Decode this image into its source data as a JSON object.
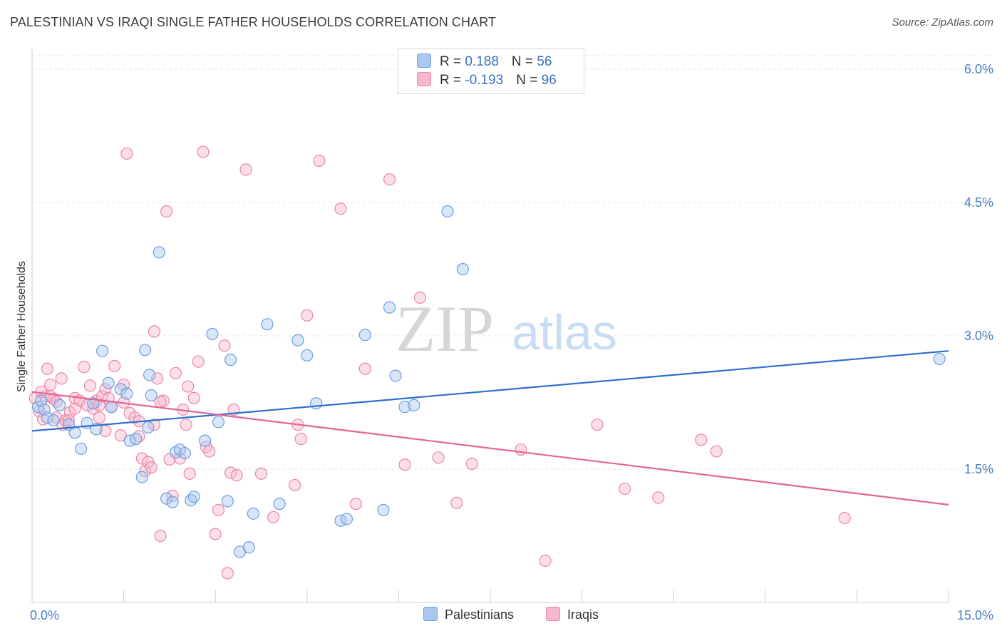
{
  "title": "PALESTINIAN VS IRAQI SINGLE FATHER HOUSEHOLDS CORRELATION CHART",
  "source": "Source: ZipAtlas.com",
  "watermark": {
    "zip": "ZIP",
    "atlas": "atlas"
  },
  "legend": {
    "rows": [
      {
        "r_label": "R = ",
        "r_value": "0.188",
        "n_label": "N = ",
        "n_value": "56",
        "color": "#a8c8f0",
        "border": "#6f9ee0"
      },
      {
        "r_label": "R = ",
        "r_value": "-0.193",
        "n_label": "N = ",
        "n_value": "96",
        "color": "#f7b8cc",
        "border": "#ec86a6"
      }
    ]
  },
  "bottom_legend": {
    "items": [
      {
        "label": "Palestinians",
        "color": "#a8c8f0",
        "border": "#6f9ee0"
      },
      {
        "label": "Iraqis",
        "color": "#f7b8cc",
        "border": "#ec86a6"
      }
    ]
  },
  "chart_data": {
    "type": "scatter",
    "title": "PALESTINIAN VS IRAQI SINGLE FATHER HOUSEHOLDS CORRELATION CHART",
    "xlabel": "",
    "ylabel": "Single Father Households",
    "xlim": [
      0,
      15
    ],
    "ylim": [
      0,
      6.3
    ],
    "x_tick_labels": [
      "0.0%",
      "15.0%"
    ],
    "y_ticks": [
      1.5,
      3.0,
      4.5,
      6.0
    ],
    "y_tick_labels": [
      "1.5%",
      "3.0%",
      "4.5%",
      "6.0%"
    ],
    "grid": true,
    "legend_position": "top-center",
    "series": [
      {
        "name": "Palestinians",
        "color": "#6f9ee0",
        "fill": "#a8c8f0",
        "trend": {
          "x": [
            0,
            15
          ],
          "y": [
            1.93,
            2.83
          ],
          "color": "#2f6fd0"
        },
        "points": [
          [
            0.1,
            2.2
          ],
          [
            0.15,
            2.27
          ],
          [
            0.2,
            2.17
          ],
          [
            0.25,
            2.08
          ],
          [
            0.35,
            2.05
          ],
          [
            0.45,
            2.22
          ],
          [
            0.6,
            2.0
          ],
          [
            0.7,
            1.91
          ],
          [
            0.8,
            1.73
          ],
          [
            0.9,
            2.02
          ],
          [
            1.0,
            2.24
          ],
          [
            1.05,
            1.95
          ],
          [
            1.15,
            2.83
          ],
          [
            1.25,
            2.47
          ],
          [
            1.3,
            2.2
          ],
          [
            1.45,
            2.4
          ],
          [
            1.55,
            2.35
          ],
          [
            1.6,
            1.82
          ],
          [
            1.7,
            1.84
          ],
          [
            1.8,
            1.41
          ],
          [
            1.85,
            2.84
          ],
          [
            1.9,
            1.97
          ],
          [
            1.92,
            2.56
          ],
          [
            1.95,
            2.33
          ],
          [
            2.08,
            3.94
          ],
          [
            2.2,
            1.17
          ],
          [
            2.3,
            1.13
          ],
          [
            2.35,
            1.69
          ],
          [
            2.42,
            1.72
          ],
          [
            2.5,
            1.68
          ],
          [
            2.6,
            1.15
          ],
          [
            2.65,
            1.19
          ],
          [
            2.83,
            1.82
          ],
          [
            2.95,
            3.02
          ],
          [
            3.05,
            2.03
          ],
          [
            3.2,
            1.14
          ],
          [
            3.25,
            2.73
          ],
          [
            3.4,
            0.57
          ],
          [
            3.55,
            0.62
          ],
          [
            3.62,
            1.0
          ],
          [
            3.85,
            3.13
          ],
          [
            4.05,
            1.11
          ],
          [
            4.35,
            2.95
          ],
          [
            4.5,
            2.78
          ],
          [
            4.65,
            2.24
          ],
          [
            5.05,
            0.92
          ],
          [
            5.15,
            0.94
          ],
          [
            5.45,
            3.01
          ],
          [
            5.75,
            1.04
          ],
          [
            5.85,
            3.32
          ],
          [
            5.95,
            2.55
          ],
          [
            6.1,
            2.2
          ],
          [
            6.25,
            2.22
          ],
          [
            6.8,
            4.4
          ],
          [
            7.05,
            3.75
          ],
          [
            14.85,
            2.74
          ]
        ]
      },
      {
        "name": "Iraqis",
        "color": "#ec86a6",
        "fill": "#f7b8cc",
        "trend": {
          "x": [
            0,
            15
          ],
          "y": [
            2.37,
            1.1
          ],
          "color": "#e36594"
        },
        "points": [
          [
            0.05,
            2.3
          ],
          [
            0.12,
            2.15
          ],
          [
            0.18,
            2.06
          ],
          [
            0.22,
            2.32
          ],
          [
            0.25,
            2.63
          ],
          [
            0.3,
            2.45
          ],
          [
            0.35,
            2.29
          ],
          [
            0.4,
            2.08
          ],
          [
            0.48,
            2.52
          ],
          [
            0.5,
            2.0
          ],
          [
            0.55,
            2.05
          ],
          [
            0.62,
            2.14
          ],
          [
            0.7,
            2.3
          ],
          [
            0.78,
            2.27
          ],
          [
            0.85,
            2.65
          ],
          [
            0.95,
            2.44
          ],
          [
            1.0,
            2.18
          ],
          [
            1.05,
            2.27
          ],
          [
            1.1,
            2.22
          ],
          [
            1.15,
            2.32
          ],
          [
            1.2,
            2.4
          ],
          [
            1.25,
            2.3
          ],
          [
            1.3,
            2.2
          ],
          [
            1.35,
            2.66
          ],
          [
            1.45,
            1.88
          ],
          [
            1.5,
            2.45
          ],
          [
            1.55,
            5.05
          ],
          [
            1.6,
            2.13
          ],
          [
            1.68,
            2.08
          ],
          [
            1.75,
            1.87
          ],
          [
            1.8,
            1.62
          ],
          [
            1.85,
            1.48
          ],
          [
            1.9,
            1.58
          ],
          [
            1.95,
            1.52
          ],
          [
            2.0,
            3.05
          ],
          [
            2.05,
            2.52
          ],
          [
            2.1,
            0.75
          ],
          [
            2.15,
            2.27
          ],
          [
            2.2,
            4.4
          ],
          [
            2.25,
            1.61
          ],
          [
            2.3,
            1.2
          ],
          [
            2.35,
            2.58
          ],
          [
            2.42,
            1.62
          ],
          [
            2.47,
            2.17
          ],
          [
            2.52,
            2.0
          ],
          [
            2.58,
            1.45
          ],
          [
            2.65,
            2.3
          ],
          [
            2.72,
            2.71
          ],
          [
            2.8,
            5.07
          ],
          [
            2.85,
            1.75
          ],
          [
            2.9,
            1.7
          ],
          [
            3.0,
            0.77
          ],
          [
            3.05,
            1.04
          ],
          [
            3.15,
            2.89
          ],
          [
            3.2,
            0.33
          ],
          [
            3.25,
            1.46
          ],
          [
            3.3,
            2.17
          ],
          [
            3.35,
            1.43
          ],
          [
            3.5,
            4.87
          ],
          [
            3.75,
            1.45
          ],
          [
            3.95,
            0.96
          ],
          [
            4.3,
            1.32
          ],
          [
            4.35,
            2.0
          ],
          [
            4.4,
            1.84
          ],
          [
            4.5,
            3.23
          ],
          [
            4.7,
            4.97
          ],
          [
            5.05,
            4.43
          ],
          [
            5.3,
            1.11
          ],
          [
            5.45,
            2.63
          ],
          [
            5.85,
            4.76
          ],
          [
            6.1,
            1.55
          ],
          [
            6.35,
            3.43
          ],
          [
            6.65,
            1.63
          ],
          [
            6.95,
            1.12
          ],
          [
            7.2,
            1.56
          ],
          [
            8.0,
            1.72
          ],
          [
            8.4,
            0.47
          ],
          [
            9.25,
            2.0
          ],
          [
            9.7,
            1.28
          ],
          [
            10.25,
            1.18
          ],
          [
            10.95,
            1.83
          ],
          [
            11.2,
            1.7
          ],
          [
            13.3,
            0.95
          ],
          [
            0.3,
            2.32
          ],
          [
            0.9,
            2.22
          ],
          [
            1.5,
            2.25
          ],
          [
            2.1,
            2.26
          ],
          [
            0.7,
            2.18
          ],
          [
            1.1,
            2.08
          ],
          [
            2.0,
            2.0
          ],
          [
            0.4,
            2.26
          ],
          [
            0.15,
            2.37
          ],
          [
            1.75,
            2.04
          ],
          [
            2.55,
            2.43
          ],
          [
            1.2,
            1.93
          ],
          [
            0.6,
            2.05
          ]
        ]
      }
    ]
  }
}
